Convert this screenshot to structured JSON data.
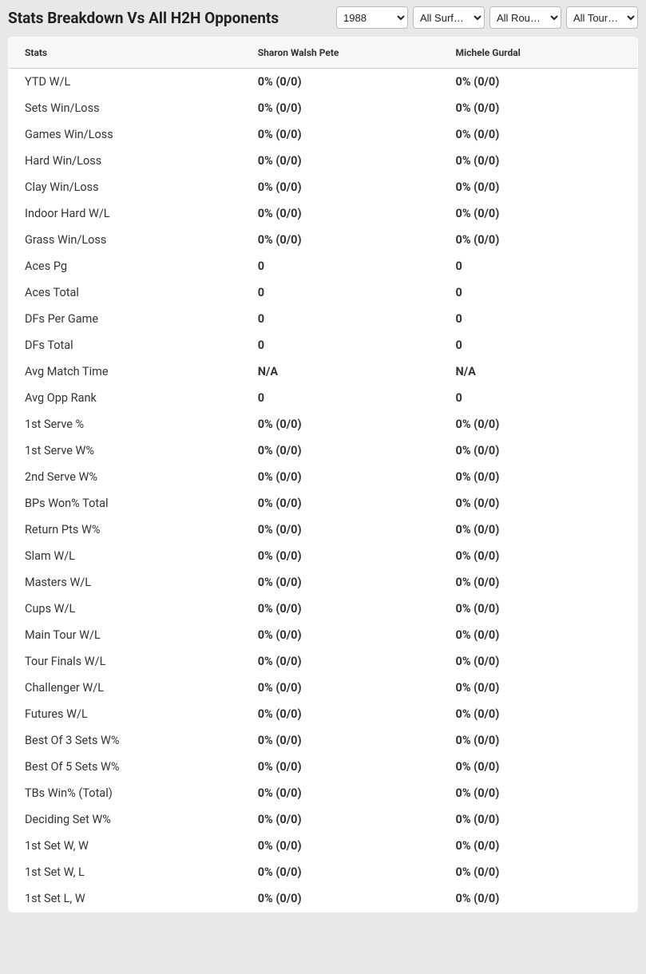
{
  "header": {
    "title": "Stats Breakdown Vs All H2H Opponents",
    "selects": {
      "year": {
        "selected": "1988"
      },
      "surface": {
        "selected": "All Surf…"
      },
      "round": {
        "selected": "All Rou…"
      },
      "tour": {
        "selected": "All Tour…"
      }
    }
  },
  "table": {
    "columns": [
      "Stats",
      "Sharon Walsh Pete",
      "Michele Gurdal"
    ],
    "colors": {
      "header_bg": "#f7f7f7",
      "border": "#cccccc",
      "text": "#333333",
      "body_bg": "#ffffff",
      "page_bg": "#e8e8e8"
    },
    "rows": [
      {
        "stat": "YTD W/L",
        "p1": "0% (0/0)",
        "p2": "0% (0/0)"
      },
      {
        "stat": "Sets Win/Loss",
        "p1": "0% (0/0)",
        "p2": "0% (0/0)"
      },
      {
        "stat": "Games Win/Loss",
        "p1": "0% (0/0)",
        "p2": "0% (0/0)"
      },
      {
        "stat": "Hard Win/Loss",
        "p1": "0% (0/0)",
        "p2": "0% (0/0)"
      },
      {
        "stat": "Clay Win/Loss",
        "p1": "0% (0/0)",
        "p2": "0% (0/0)"
      },
      {
        "stat": "Indoor Hard W/L",
        "p1": "0% (0/0)",
        "p2": "0% (0/0)"
      },
      {
        "stat": "Grass Win/Loss",
        "p1": "0% (0/0)",
        "p2": "0% (0/0)"
      },
      {
        "stat": "Aces Pg",
        "p1": "0",
        "p2": "0"
      },
      {
        "stat": "Aces Total",
        "p1": "0",
        "p2": "0"
      },
      {
        "stat": "DFs Per Game",
        "p1": "0",
        "p2": "0"
      },
      {
        "stat": "DFs Total",
        "p1": "0",
        "p2": "0"
      },
      {
        "stat": "Avg Match Time",
        "p1": "N/A",
        "p2": "N/A"
      },
      {
        "stat": "Avg Opp Rank",
        "p1": "0",
        "p2": "0"
      },
      {
        "stat": "1st Serve %",
        "p1": "0% (0/0)",
        "p2": "0% (0/0)"
      },
      {
        "stat": "1st Serve W%",
        "p1": "0% (0/0)",
        "p2": "0% (0/0)"
      },
      {
        "stat": "2nd Serve W%",
        "p1": "0% (0/0)",
        "p2": "0% (0/0)"
      },
      {
        "stat": "BPs Won% Total",
        "p1": "0% (0/0)",
        "p2": "0% (0/0)"
      },
      {
        "stat": "Return Pts W%",
        "p1": "0% (0/0)",
        "p2": "0% (0/0)"
      },
      {
        "stat": "Slam W/L",
        "p1": "0% (0/0)",
        "p2": "0% (0/0)"
      },
      {
        "stat": "Masters W/L",
        "p1": "0% (0/0)",
        "p2": "0% (0/0)"
      },
      {
        "stat": "Cups W/L",
        "p1": "0% (0/0)",
        "p2": "0% (0/0)"
      },
      {
        "stat": "Main Tour W/L",
        "p1": "0% (0/0)",
        "p2": "0% (0/0)"
      },
      {
        "stat": "Tour Finals W/L",
        "p1": "0% (0/0)",
        "p2": "0% (0/0)"
      },
      {
        "stat": "Challenger W/L",
        "p1": "0% (0/0)",
        "p2": "0% (0/0)"
      },
      {
        "stat": "Futures W/L",
        "p1": "0% (0/0)",
        "p2": "0% (0/0)"
      },
      {
        "stat": "Best Of 3 Sets W%",
        "p1": "0% (0/0)",
        "p2": "0% (0/0)"
      },
      {
        "stat": "Best Of 5 Sets W%",
        "p1": "0% (0/0)",
        "p2": "0% (0/0)"
      },
      {
        "stat": "TBs Win% (Total)",
        "p1": "0% (0/0)",
        "p2": "0% (0/0)"
      },
      {
        "stat": "Deciding Set W%",
        "p1": "0% (0/0)",
        "p2": "0% (0/0)"
      },
      {
        "stat": "1st Set W, W",
        "p1": "0% (0/0)",
        "p2": "0% (0/0)"
      },
      {
        "stat": "1st Set W, L",
        "p1": "0% (0/0)",
        "p2": "0% (0/0)"
      },
      {
        "stat": "1st Set L, W",
        "p1": "0% (0/0)",
        "p2": "0% (0/0)"
      }
    ]
  }
}
